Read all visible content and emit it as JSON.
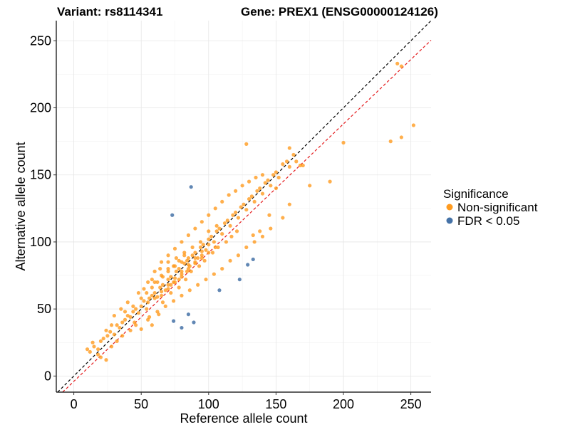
{
  "chart_data": {
    "type": "scatter",
    "title_left": "Variant: rs8114341",
    "title_right": "Gene: PREX1 (ENSG00000124126)",
    "xlabel": "Reference allele count",
    "ylabel": "Alternative allele count",
    "xlim": [
      -13,
      265
    ],
    "ylim": [
      -12,
      265
    ],
    "x_ticks": [
      0,
      50,
      100,
      150,
      200,
      250
    ],
    "y_ticks": [
      0,
      50,
      100,
      150,
      200,
      250
    ],
    "grid": true,
    "reference_lines": [
      {
        "name": "identity",
        "slope": 1,
        "intercept": 0,
        "color": "#000000",
        "dash": "dashed"
      },
      {
        "name": "fit",
        "slope": 0.96,
        "intercept": -4,
        "color": "#e41a1c",
        "dash": "dashed"
      }
    ],
    "legend": {
      "title": "Significance",
      "position": "right",
      "entries": [
        {
          "label": "Non-significant",
          "color": "#ff9b1f"
        },
        {
          "label": "FDR < 0.05",
          "color": "#4572a7"
        }
      ]
    },
    "series": [
      {
        "name": "Non-significant",
        "color": "#ff9b1f",
        "points": [
          [
            12,
            18
          ],
          [
            15,
            22
          ],
          [
            18,
            20
          ],
          [
            20,
            26
          ],
          [
            22,
            28
          ],
          [
            25,
            30
          ],
          [
            27,
            33
          ],
          [
            30,
            31
          ],
          [
            32,
            38
          ],
          [
            34,
            36
          ],
          [
            36,
            40
          ],
          [
            38,
            42
          ],
          [
            40,
            45
          ],
          [
            42,
            44
          ],
          [
            44,
            48
          ],
          [
            46,
            50
          ],
          [
            48,
            47
          ],
          [
            50,
            52
          ],
          [
            52,
            56
          ],
          [
            54,
            50
          ],
          [
            56,
            58
          ],
          [
            58,
            60
          ],
          [
            60,
            62
          ],
          [
            62,
            59
          ],
          [
            64,
            66
          ],
          [
            66,
            68
          ],
          [
            68,
            64
          ],
          [
            70,
            72
          ],
          [
            72,
            74
          ],
          [
            74,
            70
          ],
          [
            76,
            78
          ],
          [
            78,
            80
          ],
          [
            80,
            76
          ],
          [
            82,
            84
          ],
          [
            84,
            86
          ],
          [
            86,
            82
          ],
          [
            88,
            90
          ],
          [
            90,
            92
          ],
          [
            92,
            88
          ],
          [
            94,
            96
          ],
          [
            96,
            98
          ],
          [
            98,
            94
          ],
          [
            100,
            102
          ],
          [
            102,
            104
          ],
          [
            104,
            100
          ],
          [
            106,
            108
          ],
          [
            108,
            110
          ],
          [
            110,
            106
          ],
          [
            112,
            114
          ],
          [
            114,
            116
          ],
          [
            116,
            112
          ],
          [
            118,
            120
          ],
          [
            120,
            122
          ],
          [
            122,
            118
          ],
          [
            124,
            126
          ],
          [
            126,
            128
          ],
          [
            128,
            124
          ],
          [
            130,
            132
          ],
          [
            132,
            134
          ],
          [
            134,
            130
          ],
          [
            136,
            138
          ],
          [
            138,
            140
          ],
          [
            140,
            136
          ],
          [
            142,
            144
          ],
          [
            144,
            146
          ],
          [
            146,
            142
          ],
          [
            148,
            150
          ],
          [
            150,
            152
          ],
          [
            152,
            148
          ],
          [
            155,
            158
          ],
          [
            158,
            160
          ],
          [
            160,
            156
          ],
          [
            163,
            165
          ],
          [
            165,
            160
          ],
          [
            168,
            157
          ],
          [
            48,
            62
          ],
          [
            55,
            70
          ],
          [
            60,
            78
          ],
          [
            65,
            85
          ],
          [
            70,
            90
          ],
          [
            75,
            95
          ],
          [
            80,
            100
          ],
          [
            85,
            105
          ],
          [
            90,
            110
          ],
          [
            95,
            115
          ],
          [
            100,
            120
          ],
          [
            105,
            125
          ],
          [
            110,
            130
          ],
          [
            115,
            135
          ],
          [
            120,
            138
          ],
          [
            125,
            142
          ],
          [
            130,
            145
          ],
          [
            135,
            148
          ],
          [
            140,
            150
          ],
          [
            56,
            44
          ],
          [
            62,
            48
          ],
          [
            68,
            52
          ],
          [
            74,
            56
          ],
          [
            80,
            60
          ],
          [
            86,
            64
          ],
          [
            92,
            68
          ],
          [
            98,
            72
          ],
          [
            104,
            76
          ],
          [
            110,
            80
          ],
          [
            116,
            86
          ],
          [
            122,
            90
          ],
          [
            128,
            96
          ],
          [
            134,
            100
          ],
          [
            140,
            104
          ],
          [
            146,
            110
          ],
          [
            30,
            45
          ],
          [
            35,
            50
          ],
          [
            40,
            55
          ],
          [
            45,
            40
          ],
          [
            50,
            35
          ],
          [
            55,
            42
          ],
          [
            58,
            38
          ],
          [
            63,
            46
          ],
          [
            66,
            55
          ],
          [
            72,
            62
          ],
          [
            78,
            66
          ],
          [
            83,
            72
          ],
          [
            87,
            78
          ],
          [
            93,
            82
          ],
          [
            97,
            86
          ],
          [
            103,
            92
          ],
          [
            107,
            96
          ],
          [
            113,
            100
          ],
          [
            117,
            104
          ],
          [
            121,
            108
          ],
          [
            52,
            65
          ],
          [
            58,
            72
          ],
          [
            64,
            80
          ],
          [
            70,
            85
          ],
          [
            76,
            88
          ],
          [
            82,
            92
          ],
          [
            88,
            96
          ],
          [
            94,
            100
          ],
          [
            100,
            108
          ],
          [
            106,
            112
          ],
          [
            60,
            70
          ],
          [
            65,
            75
          ],
          [
            70,
            80
          ],
          [
            75,
            82
          ],
          [
            80,
            85
          ],
          [
            85,
            88
          ],
          [
            90,
            85
          ],
          [
            95,
            90
          ],
          [
            72,
            68
          ],
          [
            78,
            72
          ],
          [
            84,
            78
          ],
          [
            65,
            60
          ],
          [
            70,
            65
          ],
          [
            75,
            70
          ],
          [
            80,
            74
          ],
          [
            85,
            80
          ],
          [
            90,
            84
          ],
          [
            95,
            88
          ],
          [
            100,
            92
          ],
          [
            105,
            96
          ],
          [
            55,
            55
          ],
          [
            60,
            58
          ],
          [
            65,
            63
          ],
          [
            70,
            68
          ],
          [
            75,
            73
          ],
          [
            80,
            78
          ],
          [
            85,
            83
          ],
          [
            90,
            88
          ],
          [
            95,
            93
          ],
          [
            100,
            98
          ],
          [
            128,
            173
          ],
          [
            160,
            170
          ],
          [
            150,
            140
          ],
          [
            155,
            118
          ],
          [
            160,
            128
          ],
          [
            170,
            157
          ],
          [
            175,
            142
          ],
          [
            145,
            120
          ],
          [
            138,
            108
          ],
          [
            133,
            105
          ],
          [
            190,
            145
          ],
          [
            200,
            174
          ],
          [
            235,
            175
          ],
          [
            243,
            178
          ],
          [
            252,
            187
          ],
          [
            240,
            233
          ],
          [
            243,
            231
          ],
          [
            20,
            14
          ],
          [
            24,
            12
          ],
          [
            18,
            16
          ],
          [
            10,
            20
          ],
          [
            14,
            25
          ],
          [
            28,
            22
          ],
          [
            32,
            26
          ],
          [
            36,
            30
          ],
          [
            42,
            34
          ],
          [
            46,
            38
          ],
          [
            24,
            34
          ],
          [
            28,
            38
          ],
          [
            38,
            48
          ],
          [
            44,
            52
          ],
          [
            50,
            58
          ],
          [
            54,
            62
          ],
          [
            58,
            66
          ],
          [
            62,
            70
          ],
          [
            66,
            74
          ],
          [
            70,
            78
          ],
          [
            74,
            82
          ],
          [
            78,
            86
          ],
          [
            82,
            90
          ]
        ]
      },
      {
        "name": "FDR < 0.05",
        "color": "#4572a7",
        "points": [
          [
            73,
            120
          ],
          [
            87,
            141
          ],
          [
            74,
            41
          ],
          [
            80,
            36
          ],
          [
            85,
            46
          ],
          [
            89,
            40
          ],
          [
            108,
            64
          ],
          [
            123,
            72
          ],
          [
            129,
            83
          ],
          [
            133,
            87
          ]
        ]
      }
    ]
  }
}
